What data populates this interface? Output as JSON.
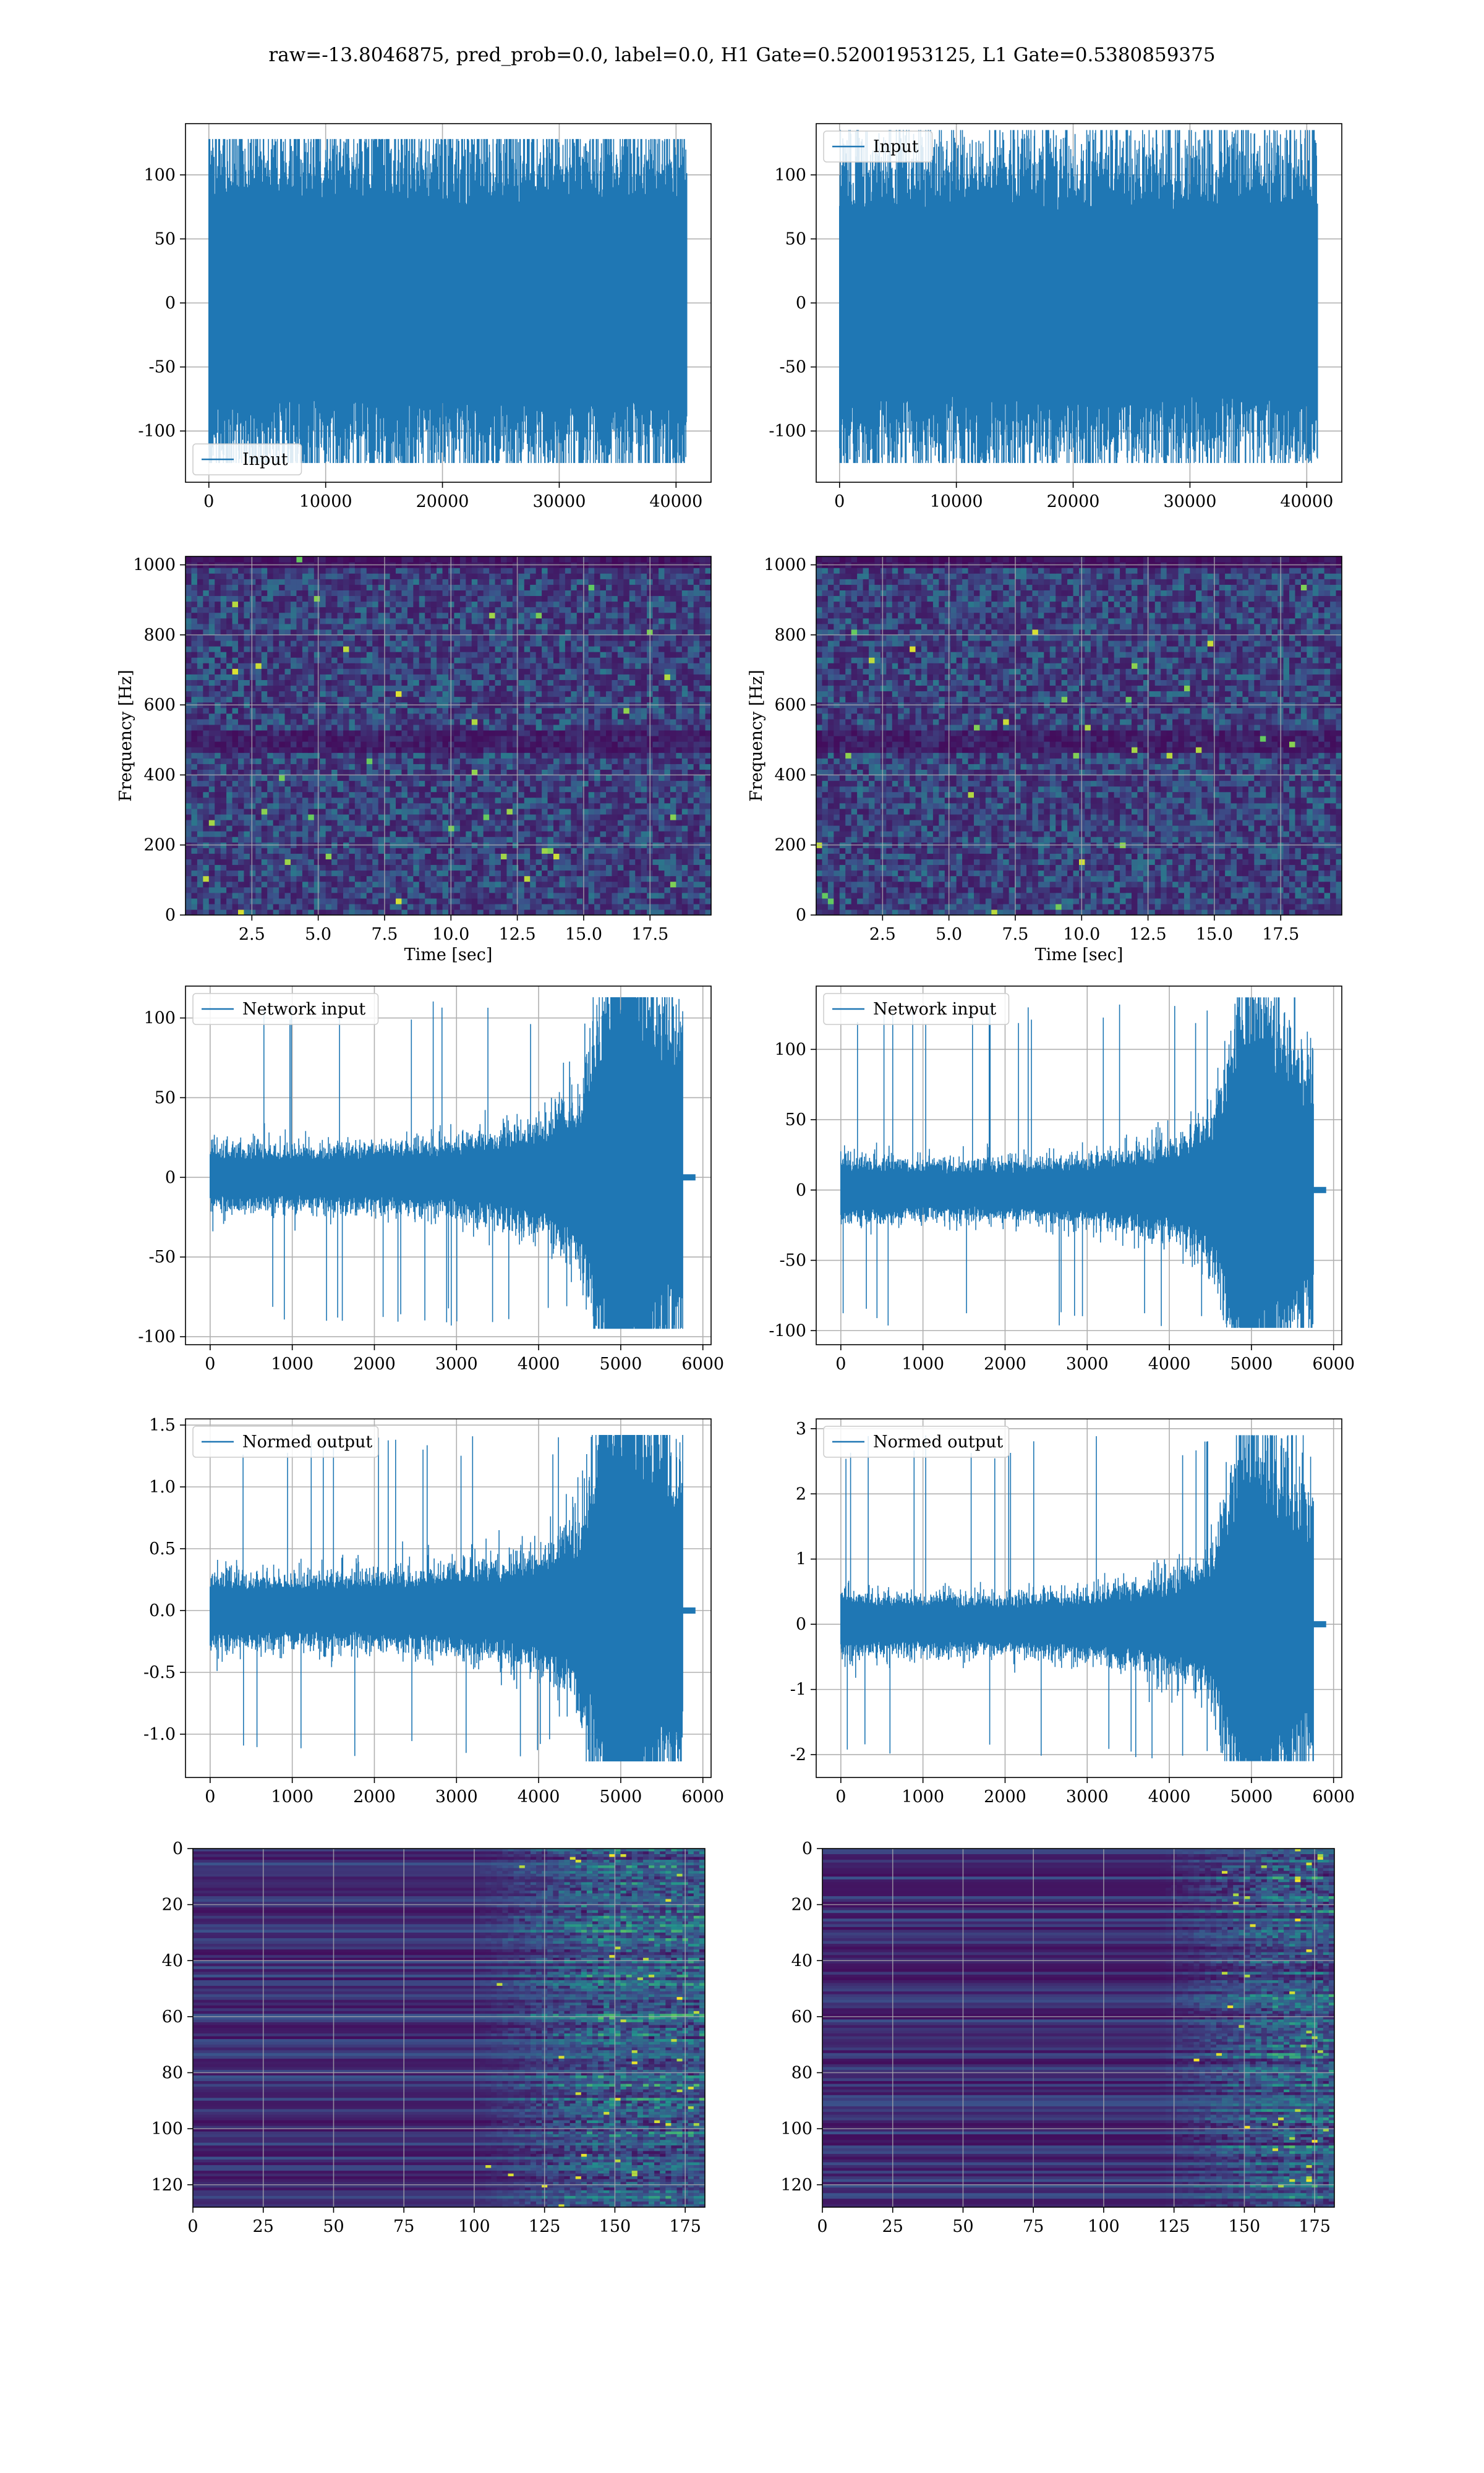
{
  "figure": {
    "suptitle": "raw=-13.8046875, pred_prob=0.0, label=0.0, H1 Gate=0.52001953125, L1 Gate=0.5380859375"
  },
  "style": {
    "line_color": "#1f77b4",
    "grid_color": "#b0b0b0",
    "colormap": "viridis"
  },
  "chart_data": [
    {
      "id": "h1-input",
      "type": "line",
      "series": [
        {
          "name": "Input",
          "n_points": 40960,
          "y_amplitude": 40,
          "y_peak_range": [
            -125,
            128
          ]
        }
      ],
      "xlim": [
        -2000,
        43000
      ],
      "ylim": [
        -140,
        140
      ],
      "xticks": [
        0,
        10000,
        20000,
        30000,
        40000
      ],
      "yticks": [
        -100,
        -50,
        0,
        50,
        100
      ],
      "legend": "lower-left",
      "grid": true,
      "xlabel": "",
      "ylabel": ""
    },
    {
      "id": "l1-input",
      "type": "line",
      "series": [
        {
          "name": "Input",
          "n_points": 40960,
          "y_amplitude": 38,
          "y_peak_range": [
            -125,
            135
          ]
        }
      ],
      "xlim": [
        -2000,
        43000
      ],
      "ylim": [
        -140,
        140
      ],
      "xticks": [
        0,
        10000,
        20000,
        30000,
        40000
      ],
      "yticks": [
        -100,
        -50,
        0,
        50,
        100
      ],
      "legend": "upper-left",
      "grid": true,
      "xlabel": "",
      "ylabel": ""
    },
    {
      "id": "h1-spectrogram",
      "type": "heatmap",
      "xlim": [
        0,
        19.8
      ],
      "ylim": [
        0,
        1024
      ],
      "xticks": [
        2.5,
        5.0,
        7.5,
        10.0,
        12.5,
        15.0,
        17.5
      ],
      "yticks": [
        0,
        200,
        400,
        600,
        800,
        1000
      ],
      "xlabel": "Time [sec]",
      "ylabel": "Frequency [Hz]",
      "grid": true,
      "dark_bands_hz": [
        480,
        520,
        1000
      ]
    },
    {
      "id": "l1-spectrogram",
      "type": "heatmap",
      "xlim": [
        0,
        19.8
      ],
      "ylim": [
        0,
        1024
      ],
      "xticks": [
        2.5,
        5.0,
        7.5,
        10.0,
        12.5,
        15.0,
        17.5
      ],
      "yticks": [
        0,
        200,
        400,
        600,
        800,
        1000
      ],
      "xlabel": "Time [sec]",
      "ylabel": "Frequency [Hz]",
      "grid": true,
      "dark_bands_hz": [
        480,
        520,
        1000
      ]
    },
    {
      "id": "h1-network-input",
      "type": "line",
      "series": [
        {
          "name": "Network input",
          "n_points": 5760,
          "y_peak_range": [
            -95,
            113
          ],
          "envelope": {
            "x": [
              0,
              1000,
              2000,
              3000,
              4000,
              4500,
              4700,
              4850,
              5000,
              5200,
              5500,
              5760
            ],
            "amp": [
              6,
              5.5,
              6,
              7,
              10,
              16,
              30,
              45,
              50,
              45,
              35,
              30
            ]
          }
        }
      ],
      "xlim": [
        -300,
        6100
      ],
      "ylim": [
        -105,
        120
      ],
      "xticks": [
        0,
        1000,
        2000,
        3000,
        4000,
        5000,
        6000
      ],
      "yticks": [
        -100,
        -50,
        0,
        50,
        100
      ],
      "legend": "upper-left",
      "grid": true,
      "xlabel": "",
      "ylabel": ""
    },
    {
      "id": "l1-network-input",
      "type": "line",
      "series": [
        {
          "name": "Network input",
          "n_points": 5760,
          "y_peak_range": [
            -98,
            137
          ],
          "envelope": {
            "x": [
              0,
              1000,
              2000,
              3000,
              4000,
              4500,
              4700,
              4850,
              5000,
              5200,
              5500,
              5760
            ],
            "amp": [
              7,
              6,
              6,
              7,
              10,
              15,
              28,
              45,
              50,
              42,
              34,
              28
            ]
          }
        }
      ],
      "xlim": [
        -300,
        6100
      ],
      "ylim": [
        -110,
        145
      ],
      "xticks": [
        0,
        1000,
        2000,
        3000,
        4000,
        5000,
        6000
      ],
      "yticks": [
        -100,
        -50,
        0,
        50,
        100
      ],
      "legend": "upper-left",
      "grid": true,
      "xlabel": "",
      "ylabel": ""
    },
    {
      "id": "h1-normed-output",
      "type": "line",
      "series": [
        {
          "name": "Normed output",
          "n_points": 5760,
          "y_peak_range": [
            -1.22,
            1.42
          ],
          "envelope": {
            "x": [
              0,
              1000,
              2000,
              3000,
              4000,
              4500,
              4700,
              4850,
              5000,
              5200,
              5500,
              5760
            ],
            "amp": [
              0.09,
              0.085,
              0.09,
              0.1,
              0.14,
              0.22,
              0.4,
              0.6,
              0.65,
              0.58,
              0.45,
              0.4
            ]
          }
        }
      ],
      "xlim": [
        -300,
        6100
      ],
      "ylim": [
        -1.35,
        1.55
      ],
      "xticks": [
        0,
        1000,
        2000,
        3000,
        4000,
        5000,
        6000
      ],
      "yticks": [
        -1.0,
        -0.5,
        0.0,
        0.5,
        1.0,
        1.5
      ],
      "legend": "upper-left",
      "grid": true,
      "xlabel": "",
      "ylabel": ""
    },
    {
      "id": "l1-normed-output",
      "type": "line",
      "series": [
        {
          "name": "Normed output",
          "n_points": 5760,
          "y_peak_range": [
            -2.1,
            2.9
          ],
          "envelope": {
            "x": [
              0,
              1000,
              2000,
              3000,
              4000,
              4500,
              4700,
              4850,
              5000,
              5200,
              5500,
              5760
            ],
            "amp": [
              0.15,
              0.13,
              0.13,
              0.15,
              0.22,
              0.32,
              0.6,
              0.95,
              1.05,
              0.9,
              0.7,
              0.6
            ]
          }
        }
      ],
      "xlim": [
        -300,
        6100
      ],
      "ylim": [
        -2.35,
        3.15
      ],
      "xticks": [
        0,
        1000,
        2000,
        3000,
        4000,
        5000,
        6000
      ],
      "yticks": [
        -2,
        -1,
        0,
        1,
        2,
        3
      ],
      "legend": "upper-left",
      "grid": true,
      "xlabel": "",
      "ylabel": ""
    },
    {
      "id": "h1-feature-map",
      "type": "heatmap",
      "xlim": [
        0,
        182
      ],
      "ylim": [
        128,
        0
      ],
      "xticks": [
        0,
        25,
        50,
        75,
        100,
        125,
        150,
        175
      ],
      "yticks": [
        0,
        20,
        40,
        60,
        80,
        100,
        120
      ],
      "grid": true,
      "xlabel": "",
      "ylabel": "",
      "active_from_x": 100
    },
    {
      "id": "l1-feature-map",
      "type": "heatmap",
      "xlim": [
        0,
        182
      ],
      "ylim": [
        128,
        0
      ],
      "xticks": [
        0,
        25,
        50,
        75,
        100,
        125,
        150,
        175
      ],
      "yticks": [
        0,
        20,
        40,
        60,
        80,
        100,
        120
      ],
      "grid": true,
      "xlabel": "",
      "ylabel": "",
      "active_from_x": 120
    }
  ]
}
